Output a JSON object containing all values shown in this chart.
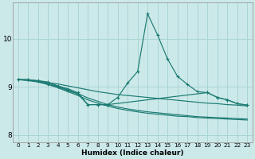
{
  "xlabel": "Humidex (Indice chaleur)",
  "background_color": "#cce9e9",
  "grid_color": "#aad4d4",
  "line_color": "#1a7a72",
  "xlim": [
    -0.5,
    23.5
  ],
  "ylim": [
    7.85,
    10.75
  ],
  "yticks": [
    8,
    9,
    10
  ],
  "xticks": [
    0,
    1,
    2,
    3,
    4,
    5,
    6,
    7,
    8,
    9,
    10,
    11,
    12,
    13,
    14,
    15,
    16,
    17,
    18,
    19,
    20,
    21,
    22,
    23
  ],
  "line1_x": [
    0,
    1,
    2,
    3,
    4,
    5,
    6,
    7,
    8,
    9,
    10,
    11,
    12,
    13,
    14,
    15,
    16,
    17,
    18,
    19,
    20,
    21,
    22,
    23
  ],
  "line1_y": [
    9.15,
    9.15,
    9.13,
    9.1,
    9.02,
    8.96,
    8.88,
    8.63,
    8.63,
    8.63,
    8.78,
    9.08,
    9.32,
    10.52,
    10.08,
    9.58,
    9.22,
    9.05,
    8.9,
    8.88,
    8.78,
    8.73,
    8.65,
    8.62
  ],
  "line2_x": [
    0,
    1,
    2,
    3,
    4,
    5,
    6,
    7,
    8,
    9,
    10,
    11,
    12,
    13,
    14,
    15,
    16,
    17,
    18,
    19,
    20,
    21,
    22,
    23
  ],
  "line2_y": [
    9.15,
    9.14,
    9.12,
    9.09,
    9.06,
    9.02,
    8.98,
    8.94,
    8.9,
    8.87,
    8.84,
    8.82,
    8.8,
    8.78,
    8.76,
    8.74,
    8.72,
    8.7,
    8.68,
    8.66,
    8.65,
    8.63,
    8.62,
    8.6
  ],
  "line3_x": [
    0,
    1,
    2,
    3,
    4,
    5,
    6,
    7,
    8,
    9,
    10,
    11,
    12,
    13,
    14,
    15,
    16,
    17,
    18,
    19,
    20,
    21,
    22,
    23
  ],
  "line3_y": [
    9.15,
    9.13,
    9.1,
    9.05,
    8.98,
    8.9,
    8.82,
    8.73,
    8.66,
    8.6,
    8.55,
    8.51,
    8.48,
    8.45,
    8.43,
    8.41,
    8.39,
    8.38,
    8.36,
    8.35,
    8.34,
    8.33,
    8.32,
    8.31
  ],
  "line4_x": [
    0,
    1,
    2,
    3,
    4,
    5,
    6,
    7,
    8,
    9,
    10,
    11,
    12,
    13,
    14,
    15,
    16,
    17,
    18,
    19,
    20,
    21,
    22,
    23
  ],
  "line4_y": [
    9.15,
    9.14,
    9.11,
    9.07,
    9.01,
    8.94,
    8.86,
    8.77,
    8.7,
    8.63,
    8.58,
    8.54,
    8.51,
    8.48,
    8.46,
    8.44,
    8.42,
    8.4,
    8.38,
    8.37,
    8.36,
    8.35,
    8.34,
    8.33
  ],
  "line5_x": [
    0,
    1,
    2,
    3,
    4,
    5,
    6,
    7,
    8,
    9,
    19,
    20,
    21,
    22,
    23
  ],
  "line5_y": [
    9.15,
    9.15,
    9.12,
    9.05,
    9.0,
    8.92,
    8.85,
    8.63,
    8.63,
    8.63,
    8.88,
    8.78,
    8.73,
    8.65,
    8.62
  ]
}
